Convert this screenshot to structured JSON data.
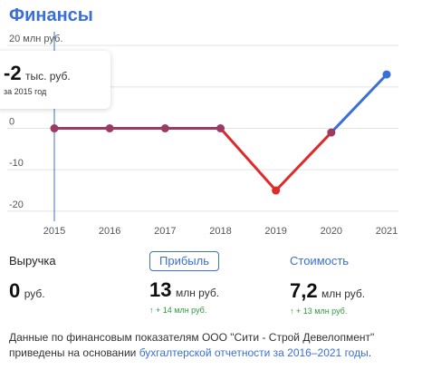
{
  "title": "Финансы",
  "chart_data": {
    "type": "line",
    "categories": [
      "2015",
      "2016",
      "2017",
      "2018",
      "2019",
      "2020",
      "2021"
    ],
    "series": [
      {
        "values": [
          -0.002,
          0,
          0,
          0,
          -15,
          -1,
          13
        ]
      }
    ],
    "ylim": [
      -22,
      22
    ],
    "yticks": [
      {
        "value": 20,
        "label": "20 млн руб."
      },
      {
        "value": 10,
        "label": ""
      },
      {
        "value": 0,
        "label": "0"
      },
      {
        "value": -10,
        "label": "-10"
      },
      {
        "value": -20,
        "label": "-20"
      }
    ],
    "colors": {
      "line_default": "#9b3b64",
      "line_down": "#e02a2a",
      "line_up": "#3a6fd8",
      "cursor": "#3a6fd8"
    },
    "selected_index": 0
  },
  "tooltip": {
    "value": "-2",
    "unit": "тыс. руб.",
    "caption": "за 2015 год"
  },
  "metrics": {
    "revenue": {
      "label": "Выручка",
      "value": "0",
      "unit": "руб."
    },
    "profit": {
      "label": "Прибыль",
      "value": "13",
      "unit": "млн руб.",
      "delta": "↑ + 14 млн руб."
    },
    "worth": {
      "label": "Стоимость",
      "value": "7,2",
      "unit": "млн руб.",
      "delta": "↑ + 13 млн руб."
    }
  },
  "footer": {
    "text1": "Данные по финансовым показателям ООО \"Сити - Строй Девелопмент\" приведены на основании ",
    "link": "бухгалтерской отчетности за 2016–2021 годы",
    "text2": "."
  }
}
